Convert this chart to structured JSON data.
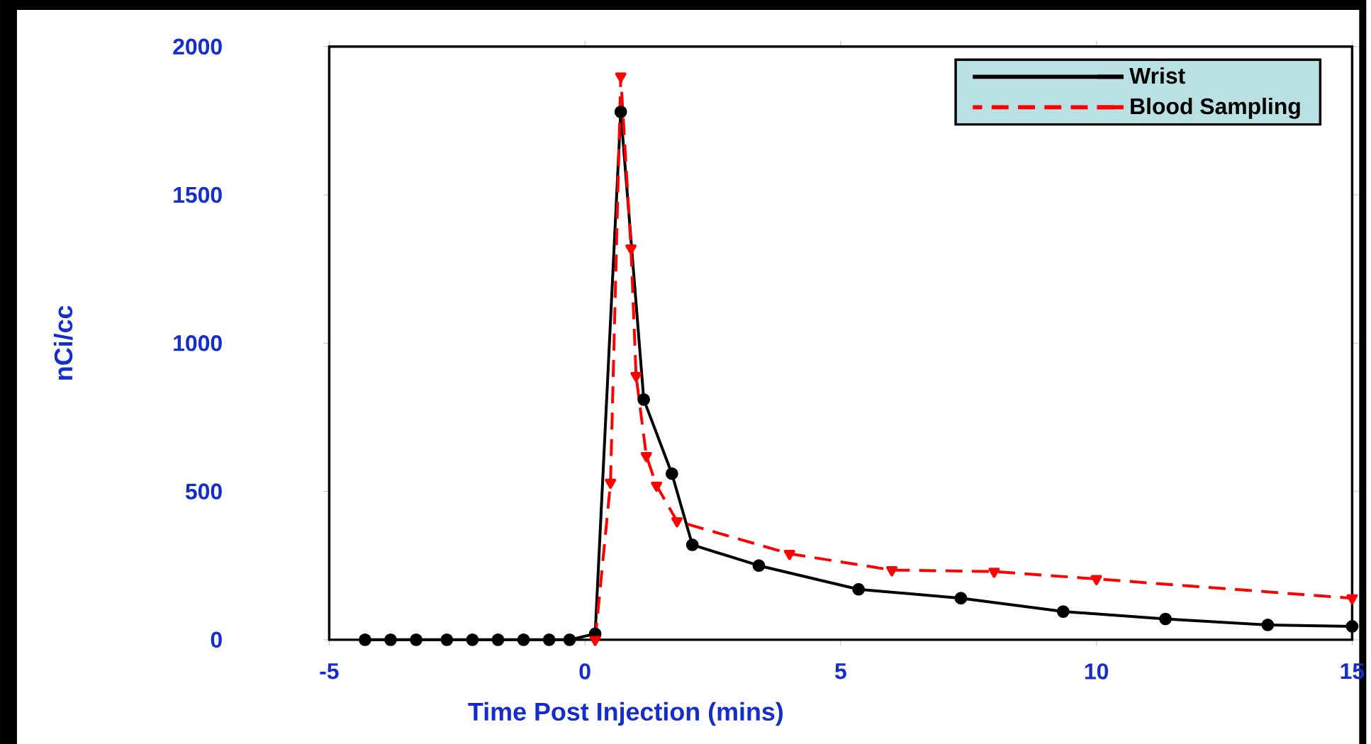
{
  "chart_data": {
    "type": "line",
    "xlabel": "Time Post Injection (mins)",
    "ylabel": "nCi/cc",
    "xlim": [
      -5,
      15
    ],
    "ylim": [
      0,
      2000
    ],
    "xticks": [
      -5,
      0,
      5,
      10,
      15
    ],
    "yticks": [
      0,
      500,
      1000,
      1500,
      2000
    ],
    "legend": "top right",
    "grid": false,
    "series": [
      {
        "name": "Wrist",
        "color": "#000000",
        "marker": "circle",
        "line_style": "solid",
        "x": [
          -4.3,
          -3.8,
          -3.3,
          -2.7,
          -2.2,
          -1.7,
          -1.2,
          -0.7,
          -0.3,
          0.2,
          0.7,
          1.15,
          1.7,
          2.1,
          3.4,
          5.35,
          7.35,
          9.35,
          11.35,
          13.35,
          15
        ],
        "values": [
          0,
          0,
          0,
          0,
          0,
          0,
          0,
          0,
          0,
          20,
          1780,
          810,
          560,
          320,
          250,
          170,
          140,
          95,
          70,
          50,
          45
        ]
      },
      {
        "name": "Blood Sampling",
        "color": "#ff0000",
        "marker": "triangle",
        "line_style": "dashed",
        "x": [
          0.2,
          0.5,
          0.7,
          0.9,
          1.0,
          1.2,
          1.4,
          1.8,
          4.0,
          6.0,
          8.0,
          10.0,
          15
        ],
        "values": [
          0,
          530,
          1900,
          1320,
          890,
          620,
          520,
          400,
          290,
          235,
          230,
          205,
          140
        ]
      }
    ]
  }
}
